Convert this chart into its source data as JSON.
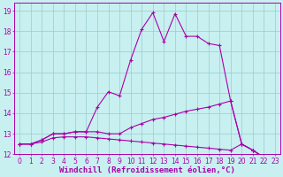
{
  "background_color": "#c8f0f0",
  "line_color": "#aa00aa",
  "grid_color": "#99cccc",
  "xlabel": "Windchill (Refroidissement éolien,°C)",
  "xlabel_fontsize": 6.5,
  "tick_fontsize": 5.5,
  "xlim": [
    -0.5,
    23.5
  ],
  "ylim": [
    12,
    19.4
  ],
  "yticks": [
    12,
    13,
    14,
    15,
    16,
    17,
    18,
    19
  ],
  "xticks": [
    0,
    1,
    2,
    3,
    4,
    5,
    6,
    7,
    8,
    9,
    10,
    11,
    12,
    13,
    14,
    15,
    16,
    17,
    18,
    19,
    20,
    21,
    22,
    23
  ],
  "series": [
    {
      "x": [
        0,
        1,
        2,
        3,
        4,
        5,
        6,
        7,
        8,
        9,
        10,
        11,
        12,
        13,
        14,
        15,
        16,
        17,
        18,
        19,
        20,
        21,
        22,
        23
      ],
      "y": [
        12.5,
        12.5,
        12.7,
        13.0,
        13.0,
        13.1,
        13.1,
        14.3,
        15.05,
        14.85,
        16.6,
        18.1,
        18.9,
        17.5,
        18.85,
        17.75,
        17.75,
        17.4,
        17.3,
        14.6,
        12.5,
        12.2,
        11.85,
        11.7
      ]
    },
    {
      "x": [
        0,
        1,
        2,
        3,
        4,
        5,
        6,
        7,
        8,
        9,
        10,
        11,
        12,
        13,
        14,
        15,
        16,
        17,
        18,
        19,
        20,
        21,
        22,
        23
      ],
      "y": [
        12.5,
        12.5,
        12.7,
        13.0,
        13.0,
        13.1,
        13.1,
        13.1,
        13.0,
        13.0,
        13.3,
        13.5,
        13.7,
        13.8,
        13.95,
        14.1,
        14.2,
        14.3,
        14.45,
        14.6,
        12.5,
        12.2,
        11.85,
        11.7
      ]
    },
    {
      "x": [
        0,
        1,
        2,
        3,
        4,
        5,
        6,
        7,
        8,
        9,
        10,
        11,
        12,
        13,
        14,
        15,
        16,
        17,
        18,
        19,
        20,
        21,
        22,
        23
      ],
      "y": [
        12.5,
        12.5,
        12.6,
        12.8,
        12.85,
        12.85,
        12.85,
        12.8,
        12.75,
        12.7,
        12.65,
        12.6,
        12.55,
        12.5,
        12.45,
        12.4,
        12.35,
        12.3,
        12.25,
        12.2,
        12.5,
        12.2,
        11.85,
        11.7
      ]
    }
  ]
}
